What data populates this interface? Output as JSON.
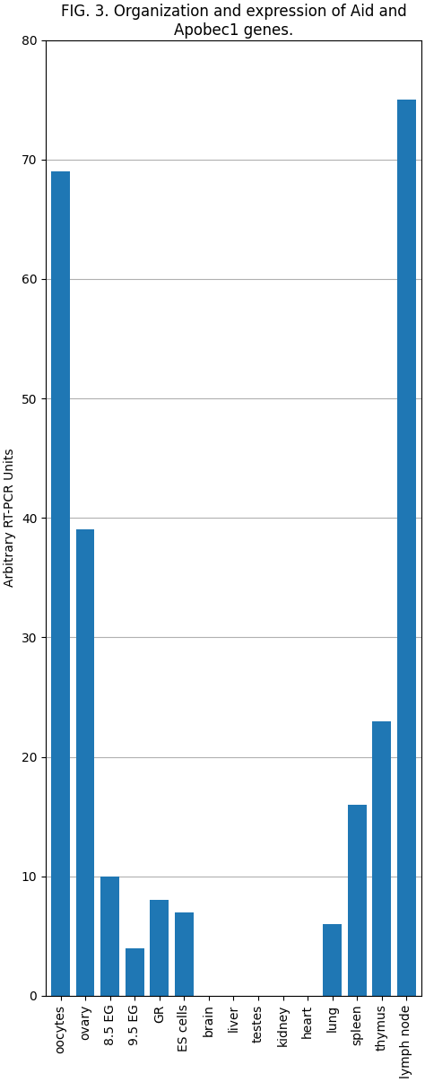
{
  "chart_data": {
    "type": "bar",
    "title": "FIG. 3. Organization and expression of Aid and Apobec1 genes.",
    "categories": [
      "oocytes",
      "ovary",
      "8.5 EG",
      "9.5 EG",
      "GR",
      "ES cells",
      "brain",
      "liver",
      "testes",
      "kidney",
      "heart",
      "lung",
      "spleen",
      "thymus",
      "lymph node"
    ],
    "values": [
      69,
      39,
      10,
      4,
      8,
      7,
      0,
      0,
      0,
      0,
      0,
      6,
      16,
      23,
      75
    ],
    "ylabel": "Arbitrary RT-PCR Units",
    "ylim": [
      0,
      80
    ],
    "yticks": [
      0,
      10,
      20,
      30,
      40,
      50,
      60,
      70,
      80
    ],
    "grid": true
  }
}
